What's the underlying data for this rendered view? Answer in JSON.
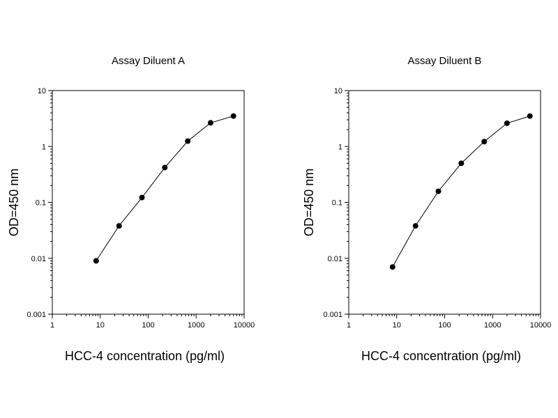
{
  "chart_data": [
    {
      "type": "line",
      "title": "Assay Diluent A",
      "xlabel": "HCC-4 concentration (pg/ml)",
      "ylabel": "OD=450 nm",
      "x_scale": "log",
      "y_scale": "log",
      "xlim": [
        1,
        10000
      ],
      "ylim": [
        0.001,
        10
      ],
      "x_ticks": [
        1,
        10,
        100,
        1000,
        10000
      ],
      "x_tick_labels": [
        "1",
        "10",
        "100",
        "1000",
        "10000"
      ],
      "y_ticks": [
        0.001,
        0.01,
        0.1,
        1,
        10
      ],
      "y_tick_labels": [
        "0.001",
        "0.01",
        "0.1",
        "1",
        "10"
      ],
      "grid": false,
      "marker": "filled-circle",
      "line_color": "#000000",
      "x": [
        8.2,
        24.7,
        74,
        222,
        667,
        2000,
        6000
      ],
      "y": [
        0.009,
        0.038,
        0.122,
        0.42,
        1.25,
        2.65,
        3.5
      ]
    },
    {
      "type": "line",
      "title": "Assay Diluent B",
      "xlabel": "HCC-4 concentration (pg/ml)",
      "ylabel": "OD=450 nm",
      "x_scale": "log",
      "y_scale": "log",
      "xlim": [
        1,
        10000
      ],
      "ylim": [
        0.001,
        10
      ],
      "x_ticks": [
        1,
        10,
        100,
        1000,
        10000
      ],
      "x_tick_labels": [
        "1",
        "10",
        "100",
        "1000",
        "10000"
      ],
      "y_ticks": [
        0.001,
        0.01,
        0.1,
        1,
        10
      ],
      "y_tick_labels": [
        "0.001",
        "0.01",
        "0.1",
        "1",
        "10"
      ],
      "grid": false,
      "marker": "filled-circle",
      "line_color": "#000000",
      "x": [
        8.2,
        24.7,
        74,
        222,
        667,
        2000,
        6000
      ],
      "y": [
        0.007,
        0.038,
        0.158,
        0.5,
        1.22,
        2.6,
        3.5
      ]
    }
  ]
}
